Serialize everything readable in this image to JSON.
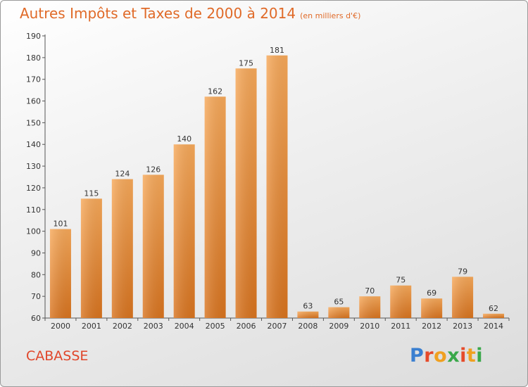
{
  "header": {
    "title": "Autres Impôts et Taxes de 2000 à 2014",
    "subtitle": "(en milliers d'€)"
  },
  "footer": {
    "commune": "CABASSE",
    "logo_letters": [
      "P",
      "r",
      "o",
      "x",
      "i",
      "t",
      "i"
    ]
  },
  "colors": {
    "bar_top": "#f7a95a",
    "bar_bottom": "#d9741f",
    "title": "#e06a28",
    "commune": "#e0462a",
    "logo": [
      "#3a7fd0",
      "#e64a2a",
      "#f0a020",
      "#3aa84a",
      "#e64a2a",
      "#f0a020",
      "#3aa84a"
    ]
  },
  "chart_data": {
    "type": "bar",
    "title": "Autres Impôts et Taxes de 2000 à 2014",
    "subtitle": "(en milliers d'€)",
    "categories": [
      "2000",
      "2001",
      "2002",
      "2003",
      "2004",
      "2005",
      "2006",
      "2007",
      "2008",
      "2009",
      "2010",
      "2011",
      "2012",
      "2013",
      "2014"
    ],
    "values": [
      101,
      115,
      124,
      126,
      140,
      162,
      175,
      181,
      63,
      65,
      70,
      75,
      69,
      79,
      62
    ],
    "ylim": [
      60,
      190
    ],
    "yticks": [
      60,
      70,
      80,
      90,
      100,
      110,
      120,
      130,
      140,
      150,
      160,
      170,
      180,
      190
    ],
    "grid": false,
    "legend": "none"
  }
}
